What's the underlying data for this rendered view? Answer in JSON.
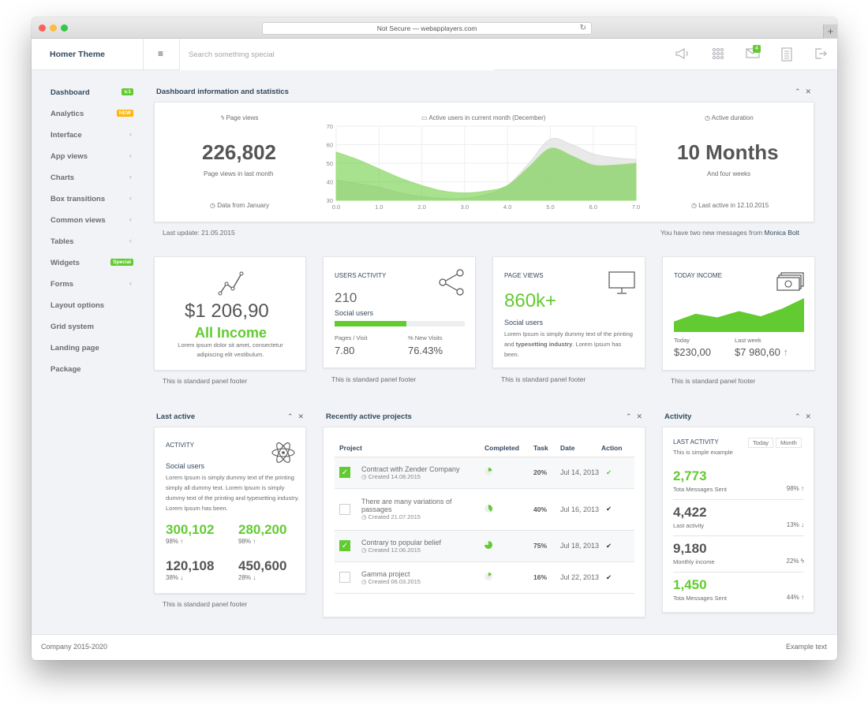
{
  "browser": {
    "url": "Not Secure — webapplayers.com",
    "reload": "↻",
    "plus": "+"
  },
  "header": {
    "brand": "Homer Theme",
    "menu_icon": "≡",
    "search_placeholder": "Search something special",
    "icons": [
      "megaphone-icon",
      "apps-grid-icon",
      "envelope-icon",
      "document-icon",
      "logout-icon"
    ],
    "mail_badge": "4"
  },
  "sidebar": {
    "items": [
      {
        "label": "Dashboard",
        "badge": "v.1",
        "badge_color": "#62cb31"
      },
      {
        "label": "Analytics",
        "badge": "NEW",
        "badge_color": "#ffb606"
      },
      {
        "label": "Interface",
        "chevron": "‹"
      },
      {
        "label": "App views",
        "chevron": "‹"
      },
      {
        "label": "Charts",
        "chevron": "‹"
      },
      {
        "label": "Box transitions",
        "chevron": "‹"
      },
      {
        "label": "Common views",
        "chevron": "‹"
      },
      {
        "label": "Tables",
        "chevron": "‹"
      },
      {
        "label": "Widgets",
        "badge": "Special",
        "badge_color": "#62cb31"
      },
      {
        "label": "Forms",
        "chevron": "‹"
      },
      {
        "label": "Layout options"
      },
      {
        "label": "Grid system"
      },
      {
        "label": "Landing page"
      },
      {
        "label": "Package"
      }
    ]
  },
  "stats": {
    "title": "Dashboard information and statistics",
    "page_views_label": "Page views",
    "page_views_value": "226,802",
    "page_views_sub": "Page views in last month",
    "page_views_note": "Data from January",
    "active_users_label": "Active users in current month (December)",
    "duration_label": "Active duration",
    "duration_value": "10 Months",
    "duration_sub": "And four weeks",
    "duration_note": "Last active in 12.10.2015",
    "last_update": "Last update: 21.05.2015",
    "messages_prefix": "You have two new messages from",
    "messages_from": "Monica Bolt"
  },
  "chart_data": {
    "type": "area",
    "x": [
      0.0,
      0.5,
      1.0,
      1.5,
      2.0,
      2.5,
      3.0,
      3.5,
      4.0,
      4.5,
      5.0,
      5.5,
      6.0,
      6.5,
      7.0
    ],
    "series": [
      {
        "values": [
          56,
          52,
          47,
          42,
          38,
          35,
          34,
          35,
          38,
          48,
          58,
          54,
          49,
          49,
          50
        ],
        "color": "#62cb31"
      },
      {
        "values": [
          41,
          39,
          37,
          34,
          32,
          31,
          31,
          33,
          38,
          50,
          63,
          60,
          55,
          53,
          52
        ],
        "color": "#e4e4e4"
      }
    ],
    "xticks": [
      "0.0",
      "1.0",
      "2.0",
      "3.0",
      "4.0",
      "5.0",
      "6.0",
      "7.0"
    ],
    "yticks": [
      "30",
      "40",
      "50",
      "60",
      "70"
    ],
    "xlim": [
      0,
      7
    ],
    "ylim": [
      30,
      70
    ],
    "grid": true
  },
  "cards": {
    "income": {
      "value": "$1 206,90",
      "title": "All Income",
      "text": "Lorem ipsum dolor sit amet, consectetur adipiscing elit vestibulum.",
      "icon": "trend-line-icon"
    },
    "users": {
      "title": "USERS ACTIVITY",
      "value": "210",
      "sub": "Social users",
      "progress": 0.55,
      "pages_label": "Pages / Visit",
      "pages_value": "7.80",
      "new_label": "% New Visits",
      "new_value": "76.43%",
      "icon": "share-icon"
    },
    "pageviews": {
      "title": "PAGE VIEWS",
      "value": "860k+",
      "sub": "Social users",
      "text_pre": "Lorem Ipsum is simply dummy text of the printing and ",
      "text_bold": "typesetting industry",
      "text_post": ". Lorem Ipsum has been.",
      "icon": "monitor-icon"
    },
    "today": {
      "title": "TODAY INCOME",
      "today_label": "Today",
      "today_value": "$230,00",
      "week_label": "Last week",
      "week_value": "$7 980,60",
      "arrow": "↑",
      "icon": "money-icon",
      "chart_values": [
        20,
        35,
        28,
        40,
        30,
        45,
        65
      ]
    },
    "footer": "This is standard panel footer"
  },
  "last_active": {
    "title": "Last active",
    "heading": "ACTIVITY",
    "sub": "Social users",
    "text": "Lorem Ipsum is simply dummy text of the printing simply all dummy text. Lorem Ipsum is simply dummy text of the printing and typesetting industry. Lorem Ipsum has been.",
    "stats": [
      {
        "value": "300,102",
        "pct": "98% ↑",
        "green": true
      },
      {
        "value": "280,200",
        "pct": "98% ↑",
        "green": true
      },
      {
        "value": "120,108",
        "pct": "38% ↓",
        "green": false
      },
      {
        "value": "450,600",
        "pct": "28% ↓",
        "green": false
      }
    ],
    "footer": "This is standard panel footer"
  },
  "projects": {
    "title": "Recently active projects",
    "columns": [
      "Project",
      "Completed",
      "Task",
      "Date",
      "Action"
    ],
    "rows": [
      {
        "checked": true,
        "name": "Contract with Zender Company",
        "created": "Created 14.08.2015",
        "completed": 0.2,
        "task": "20%",
        "date": "Jul 14, 2013",
        "action": "✔",
        "action_color": "#62cb31"
      },
      {
        "checked": false,
        "name": "There are many variations of passages",
        "created": "Created 21.07.2015",
        "completed": 0.4,
        "task": "40%",
        "date": "Jul 16, 2013",
        "action": "✔",
        "action_color": "#333333"
      },
      {
        "checked": true,
        "name": "Contrary to popular belief",
        "created": "Created 12.06.2015",
        "completed": 0.75,
        "task": "75%",
        "date": "Jul 18, 2013",
        "action": "✔",
        "action_color": "#333333"
      },
      {
        "checked": false,
        "name": "Gamma project",
        "created": "Created 06.03.2015",
        "completed": 0.16,
        "task": "16%",
        "date": "Jul 22, 2013",
        "action": "✔",
        "action_color": "#333333"
      }
    ]
  },
  "activity": {
    "title": "Activity",
    "heading": "LAST ACTIVITY",
    "sub": "This is simple example",
    "btn_today": "Today",
    "btn_month": "Month",
    "rows": [
      {
        "value": "2,773",
        "label": "Tota Messages Sent",
        "pct": "98% ↑",
        "green": true
      },
      {
        "value": "4,422",
        "label": "Last activity",
        "pct": "13% ↓",
        "green": false
      },
      {
        "value": "9,180",
        "label": "Monthly income",
        "pct": "22% ϟ",
        "green": false
      },
      {
        "value": "1,450",
        "label": "Tota Messages Sent",
        "pct": "44% ↑",
        "green": true
      }
    ]
  },
  "footer": {
    "left": "Company 2015-2020",
    "right": "Example text"
  }
}
